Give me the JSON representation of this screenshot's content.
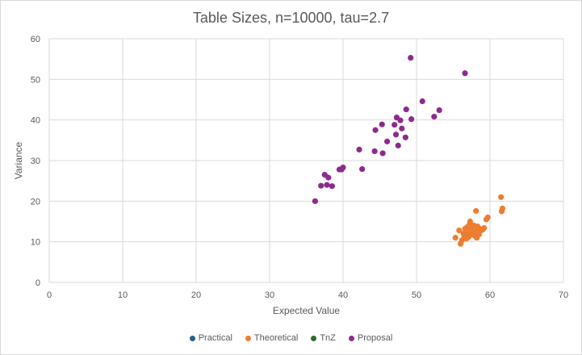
{
  "chart_data": {
    "type": "scatter",
    "title": "Table Sizes, n=10000, tau=2.7",
    "xlabel": "Expected Value",
    "ylabel": "Variance",
    "xlim": [
      0,
      70
    ],
    "ylim": [
      0,
      60
    ],
    "xticks": [
      0,
      10,
      20,
      30,
      40,
      50,
      60,
      70
    ],
    "yticks": [
      0,
      10,
      20,
      30,
      40,
      50,
      60
    ],
    "grid": true,
    "legend_position": "bottom",
    "series": [
      {
        "name": "Practical",
        "color": "#255e91",
        "points": []
      },
      {
        "name": "Theoretical",
        "color": "#ed7d31",
        "points": [
          [
            55.3,
            11.0
          ],
          [
            55.8,
            12.8
          ],
          [
            56.0,
            9.5
          ],
          [
            56.2,
            10.4
          ],
          [
            56.4,
            12.0
          ],
          [
            56.5,
            11.5
          ],
          [
            56.6,
            13.2
          ],
          [
            56.7,
            12.6
          ],
          [
            56.8,
            10.8
          ],
          [
            56.9,
            13.6
          ],
          [
            57.0,
            12.0
          ],
          [
            57.1,
            11.2
          ],
          [
            57.2,
            14.2
          ],
          [
            57.3,
            15.0
          ],
          [
            57.4,
            12.5
          ],
          [
            57.5,
            13.0
          ],
          [
            57.6,
            11.8
          ],
          [
            57.7,
            12.2
          ],
          [
            57.8,
            14.0
          ],
          [
            57.9,
            11.5
          ],
          [
            58.0,
            12.6
          ],
          [
            58.1,
            17.6
          ],
          [
            58.2,
            11.0
          ],
          [
            58.3,
            13.8
          ],
          [
            58.4,
            12.4
          ],
          [
            58.5,
            11.8
          ],
          [
            58.6,
            13.2
          ],
          [
            58.8,
            12.8
          ],
          [
            59.0,
            13.0
          ],
          [
            59.2,
            13.4
          ],
          [
            59.5,
            15.5
          ],
          [
            59.7,
            16.0
          ],
          [
            61.5,
            21.0
          ],
          [
            61.6,
            17.5
          ],
          [
            61.7,
            18.2
          ]
        ]
      },
      {
        "name": "TnZ",
        "color": "#2e6b2e",
        "points": []
      },
      {
        "name": "Proposal",
        "color": "#8e2a8e",
        "points": [
          [
            36.2,
            20.0
          ],
          [
            37.0,
            23.8
          ],
          [
            37.5,
            26.5
          ],
          [
            37.8,
            24.0
          ],
          [
            38.0,
            25.8
          ],
          [
            38.5,
            23.7
          ],
          [
            39.5,
            27.8
          ],
          [
            39.8,
            27.8
          ],
          [
            40.0,
            28.3
          ],
          [
            42.2,
            32.7
          ],
          [
            42.6,
            27.9
          ],
          [
            44.3,
            32.3
          ],
          [
            44.4,
            37.5
          ],
          [
            45.3,
            38.9
          ],
          [
            45.4,
            31.8
          ],
          [
            46.0,
            34.7
          ],
          [
            47.0,
            38.8
          ],
          [
            47.2,
            36.4
          ],
          [
            47.3,
            40.6
          ],
          [
            47.5,
            33.7
          ],
          [
            47.8,
            39.9
          ],
          [
            48.0,
            37.9
          ],
          [
            48.5,
            35.7
          ],
          [
            48.6,
            42.6
          ],
          [
            49.2,
            55.3
          ],
          [
            49.3,
            40.2
          ],
          [
            50.8,
            44.6
          ],
          [
            52.4,
            40.8
          ],
          [
            53.1,
            42.4
          ],
          [
            56.6,
            51.5
          ]
        ]
      }
    ]
  }
}
